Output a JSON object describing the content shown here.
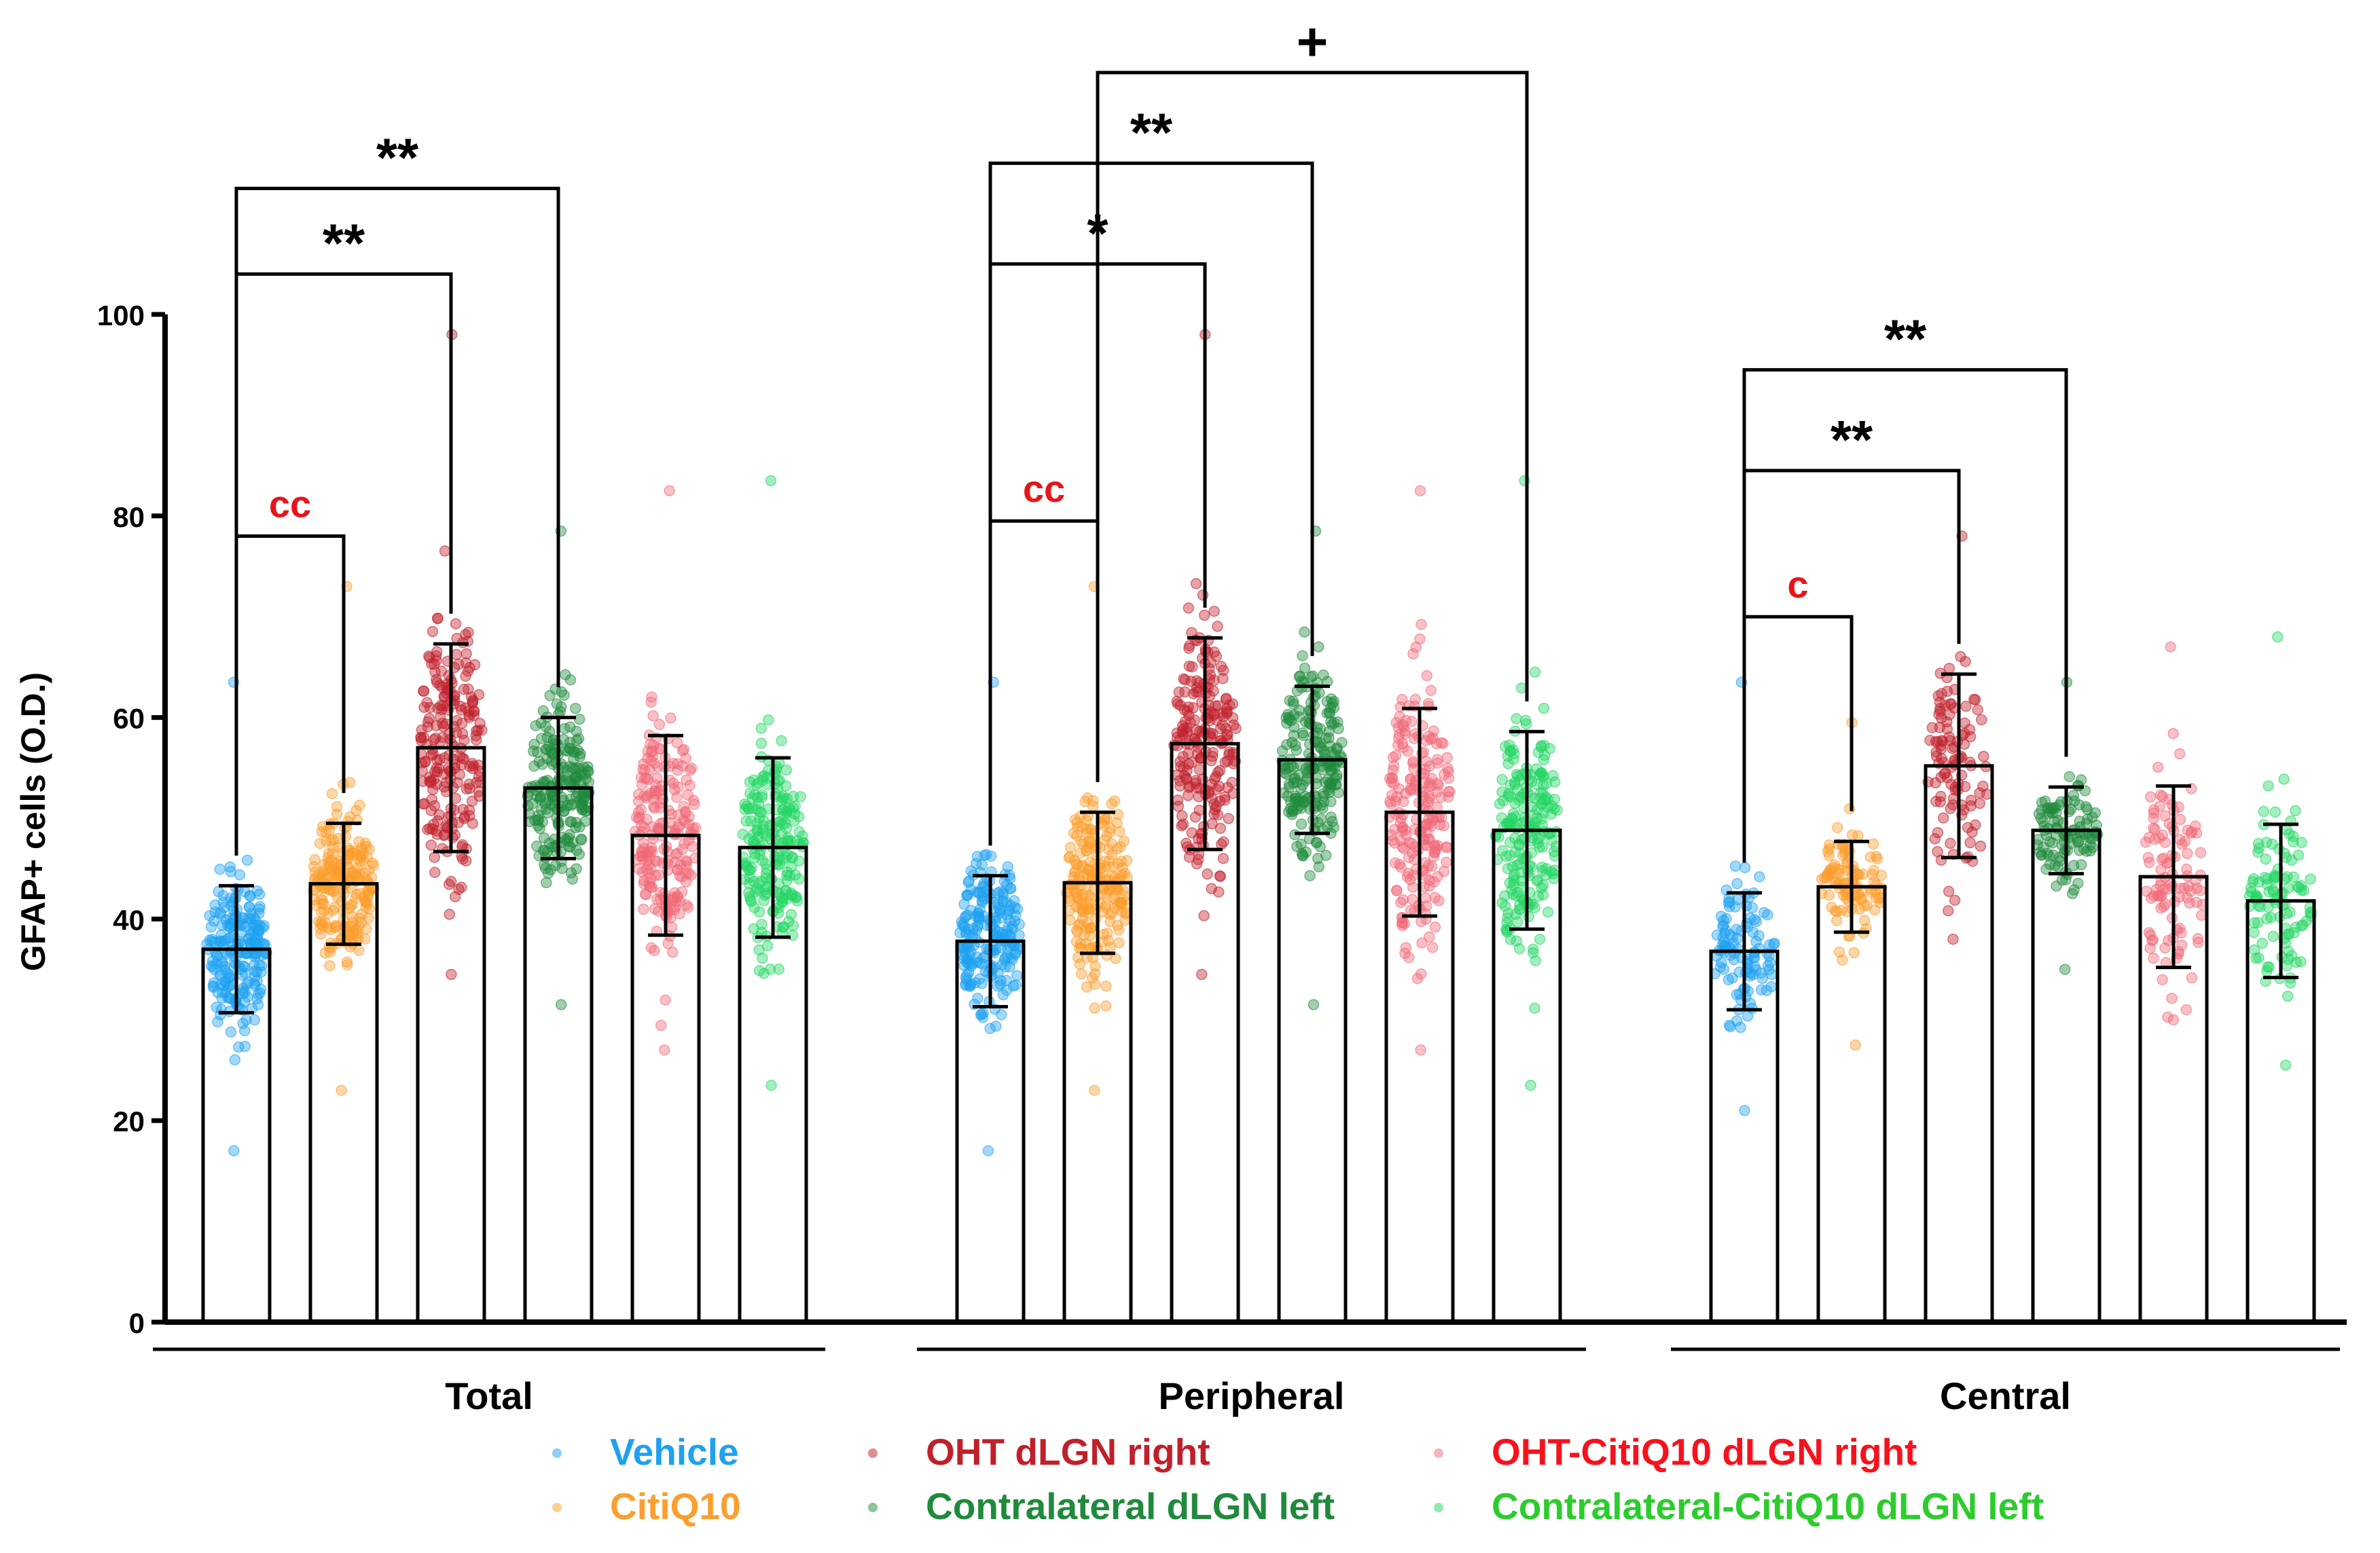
{
  "chart_data": {
    "type": "bar",
    "title": "",
    "ylabel": "GFAP+ cells (O.D.)",
    "xlabel": "",
    "ylim": [
      0,
      100
    ],
    "yticks": [
      0,
      20,
      40,
      60,
      80,
      100
    ],
    "categories": [
      "Total",
      "Peripheral",
      "Central"
    ],
    "series": [
      {
        "name": "Vehicle",
        "color": "#1ea1f0",
        "values": [
          37,
          37.8,
          36.8
        ],
        "sd": [
          6.3,
          6.5,
          5.8
        ],
        "point_range": [
          [
            17,
            63.5
          ],
          [
            17,
            63.5
          ],
          [
            21,
            63.5
          ]
        ]
      },
      {
        "name": "CitiQ10",
        "color": "#fb9e2e",
        "values": [
          43.5,
          43.6,
          43.2
        ],
        "sd": [
          6.0,
          7.0,
          4.5
        ],
        "point_range": [
          [
            23,
            73
          ],
          [
            23,
            73
          ],
          [
            27.5,
            59.5
          ]
        ]
      },
      {
        "name": "OHT dLGN right",
        "color": "#c0202a",
        "values": [
          57,
          57.4,
          55.2
        ],
        "sd": [
          10.3,
          10.5,
          9.1
        ],
        "point_range": [
          [
            34.5,
            98
          ],
          [
            34.5,
            98
          ],
          [
            38,
            78
          ]
        ]
      },
      {
        "name": "Contralateral dLGN left",
        "color": "#1f8a3c",
        "values": [
          53,
          55.8,
          48.8
        ],
        "sd": [
          7.0,
          7.3,
          4.3
        ],
        "point_range": [
          [
            31.5,
            78.5
          ],
          [
            31.5,
            78.5
          ],
          [
            35,
            63.5
          ]
        ]
      },
      {
        "name": "OHT-CitiQ10 dLGN right",
        "color": "#f06a78",
        "values": [
          48.3,
          50.6,
          44.2
        ],
        "sd": [
          9.9,
          10.3,
          9.0
        ],
        "point_range": [
          [
            27,
            82.5
          ],
          [
            27,
            82.5
          ],
          [
            30,
            67
          ]
        ]
      },
      {
        "name": "Contralateral-CitiQ10 dLGN left",
        "color": "#24d664",
        "values": [
          47.1,
          48.8,
          41.8
        ],
        "sd": [
          8.9,
          9.8,
          7.6
        ],
        "point_range": [
          [
            23.5,
            83.5
          ],
          [
            23.5,
            83.5
          ],
          [
            25.5,
            68
          ]
        ]
      }
    ],
    "legend": {
      "position": "bottom",
      "items": [
        {
          "label": "Vehicle",
          "color": "#1ea1f0"
        },
        {
          "label": "CitiQ10",
          "color": "#fb9e2e"
        },
        {
          "label": "OHT dLGN right",
          "color": "#c0202a"
        },
        {
          "label": "Contralateral dLGN left",
          "color": "#1f8a3c"
        },
        {
          "label": "OHT-CitiQ10 dLGN right",
          "color": "#f6121d"
        },
        {
          "label": "Contralateral-CitiQ10 dLGN left",
          "color": "#2ccc2c"
        }
      ]
    },
    "annotations": [
      {
        "group": 0,
        "from": 0,
        "to": 1,
        "label": "cc",
        "y": 78,
        "color": "#e8141a"
      },
      {
        "group": 0,
        "from": 0,
        "to": 2,
        "label": "**",
        "y": 104,
        "color": "#000000"
      },
      {
        "group": 0,
        "from": 0,
        "to": 3,
        "label": "**",
        "y": 112.5,
        "color": "#000000"
      },
      {
        "group": 1,
        "from": 0,
        "to": 1,
        "label": "cc",
        "y": 79.5,
        "color": "#e8141a"
      },
      {
        "group": 1,
        "from": 0,
        "to": 2,
        "label": "*",
        "y": 105,
        "color": "#000000"
      },
      {
        "group": 1,
        "from": 0,
        "to": 3,
        "label": "**",
        "y": 115,
        "color": "#000000"
      },
      {
        "group": 1,
        "from": 1,
        "to": 5,
        "label": "+",
        "y": 124,
        "color": "#000000"
      },
      {
        "group": 2,
        "from": 0,
        "to": 1,
        "label": "c",
        "y": 70,
        "color": "#e8141a"
      },
      {
        "group": 2,
        "from": 0,
        "to": 2,
        "label": "**",
        "y": 84.5,
        "color": "#000000"
      },
      {
        "group": 2,
        "from": 0,
        "to": 3,
        "label": "**",
        "y": 94.5,
        "color": "#000000"
      }
    ]
  }
}
